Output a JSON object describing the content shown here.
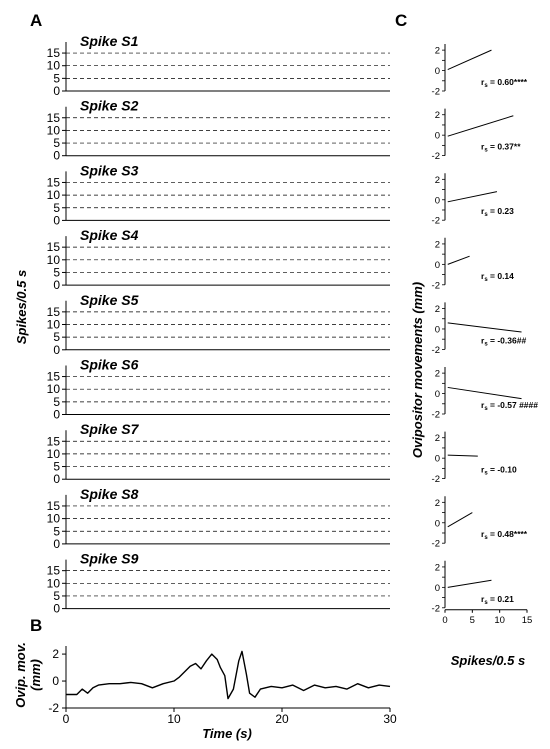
{
  "figure": {
    "panel_a_letter": "A",
    "panel_b_letter": "B",
    "panel_c_letter": "C",
    "panel_a_ylabel": "Spikes/0.5 s",
    "panel_b_ylabel_line1": "Ovip. mov.",
    "panel_b_ylabel_line2": "(mm)",
    "panel_b_xlabel": "Time (s)",
    "panel_c_ylabel": "Ovipositor movements (mm)",
    "panel_c_xlabel": "Spikes/0.5 s"
  },
  "chart_data": [
    {
      "type": "bar",
      "panel": "A",
      "x_unit": "Time (s)",
      "bin_width_s": 0.5,
      "n_bins": 60,
      "ylim": [
        0,
        17
      ],
      "yticks": [
        0,
        5,
        10,
        15
      ],
      "grid": "dashed horizontal",
      "series": [
        {
          "name": "Spike S1",
          "values": [
            0,
            0,
            0,
            0,
            0,
            0,
            0,
            0,
            0,
            0,
            0,
            0,
            0,
            0,
            0,
            0,
            0,
            0,
            0,
            0,
            0,
            0,
            0,
            0,
            0,
            0,
            0,
            0,
            0,
            0,
            0,
            0,
            0,
            0,
            0,
            0,
            0,
            0,
            0,
            0,
            0,
            0,
            0,
            0,
            0,
            0,
            0,
            0,
            0,
            0,
            0,
            0,
            0,
            0,
            0,
            0,
            0,
            0,
            0,
            0
          ]
        },
        {
          "name": "Spike S2",
          "values": [
            0,
            0,
            0,
            0,
            0,
            0,
            0,
            0,
            0,
            0,
            0,
            0,
            0,
            0,
            0,
            0,
            0,
            0,
            0,
            0,
            0,
            0,
            0,
            0,
            0,
            0,
            0,
            0,
            0,
            0,
            0,
            0,
            0,
            0,
            0,
            0,
            0,
            0,
            0,
            0,
            0,
            0,
            0,
            0,
            0,
            0,
            0,
            0,
            0,
            0,
            0,
            0,
            0,
            0,
            0,
            0,
            0,
            0,
            0,
            0
          ]
        },
        {
          "name": "Spike S3",
          "values": [
            0,
            0,
            0,
            0,
            0,
            0,
            0,
            0,
            0,
            0,
            0,
            0,
            0,
            0,
            0,
            0,
            0,
            0,
            0,
            0,
            0,
            0,
            0,
            0,
            0,
            0,
            0,
            0,
            0,
            0,
            0,
            0,
            0,
            0,
            0,
            0,
            0,
            0,
            0,
            0,
            0,
            0,
            0,
            0,
            0,
            0,
            0,
            0,
            0,
            0,
            0,
            0,
            0,
            0,
            0,
            0,
            0,
            0,
            0,
            0
          ]
        },
        {
          "name": "Spike S4",
          "values": [
            0,
            0,
            0,
            0,
            0,
            0,
            0,
            0,
            0,
            0,
            0,
            0,
            0,
            0,
            0,
            0,
            0,
            0,
            0,
            0,
            0,
            0,
            0,
            0,
            0,
            0,
            0,
            0,
            0,
            0,
            0,
            0,
            0,
            0,
            0,
            0,
            0,
            0,
            0,
            0,
            0,
            0,
            0,
            0,
            0,
            0,
            0,
            0,
            0,
            0,
            0,
            0,
            0,
            0,
            0,
            0,
            0,
            0,
            0,
            0
          ]
        },
        {
          "name": "Spike S5",
          "values": [
            0,
            0,
            0,
            0,
            0,
            0,
            0,
            0,
            0,
            0,
            0,
            0,
            0,
            0,
            0,
            0,
            0,
            0,
            0,
            0,
            0,
            0,
            0,
            0,
            0,
            0,
            0,
            0,
            0,
            0,
            0,
            0,
            0,
            0,
            0,
            0,
            0,
            0,
            0,
            0,
            0,
            0,
            0,
            0,
            0,
            0,
            0,
            0,
            0,
            0,
            0,
            0,
            0,
            0,
            0,
            0,
            0,
            0,
            0,
            0
          ]
        },
        {
          "name": "Spike S6",
          "values": [
            0,
            0,
            0,
            0,
            0,
            0,
            0,
            0,
            0,
            0,
            0,
            0,
            0,
            0,
            0,
            0,
            0,
            0,
            0,
            0,
            0,
            0,
            0,
            0,
            0,
            0,
            0,
            0,
            0,
            0,
            0,
            0,
            0,
            0,
            0,
            0,
            0,
            0,
            0,
            0,
            0,
            0,
            0,
            0,
            0,
            0,
            0,
            0,
            0,
            0,
            0,
            0,
            0,
            0,
            0,
            0,
            0,
            0,
            0,
            0
          ]
        },
        {
          "name": "Spike S7",
          "values": [
            0,
            0,
            0,
            0,
            0,
            0,
            0,
            0,
            0,
            0,
            0,
            0,
            0,
            0,
            0,
            0,
            0,
            0,
            0,
            0,
            0,
            0,
            0,
            0,
            0,
            0,
            0,
            0,
            0,
            0,
            0,
            0,
            0,
            0,
            0,
            0,
            0,
            0,
            0,
            0,
            0,
            0,
            0,
            0,
            0,
            0,
            0,
            0,
            0,
            0,
            0,
            0,
            0,
            0,
            0,
            0,
            0,
            0,
            0,
            0
          ]
        },
        {
          "name": "Spike S8",
          "values": [
            0,
            0,
            0,
            0,
            0,
            0,
            0,
            0,
            0,
            0,
            0,
            0,
            0,
            0,
            0,
            0,
            0,
            0,
            0,
            0,
            0,
            0,
            0,
            0,
            0,
            0,
            0,
            0,
            0,
            0,
            0,
            0,
            0,
            0,
            0,
            0,
            0,
            0,
            0,
            0,
            0,
            0,
            0,
            0,
            0,
            0,
            0,
            0,
            0,
            0,
            0,
            0,
            0,
            0,
            0,
            0,
            0,
            0,
            0,
            0
          ]
        },
        {
          "name": "Spike S9",
          "values": [
            0,
            0,
            0,
            0,
            0,
            0,
            0,
            0,
            0,
            0,
            0,
            0,
            0,
            0,
            0,
            0,
            0,
            0,
            0,
            0,
            0,
            0,
            0,
            0,
            0,
            0,
            0,
            0,
            0,
            0,
            0,
            0,
            0,
            0,
            0,
            0,
            0,
            0,
            0,
            0,
            0,
            0,
            0,
            0,
            0,
            0,
            0,
            0,
            0,
            0,
            0,
            0,
            0,
            0,
            0,
            0,
            0,
            0,
            0,
            0
          ]
        }
      ]
    },
    {
      "type": "line",
      "panel": "B",
      "xlabel": "Time (s)",
      "ylabel": "Ovip. mov. (mm)",
      "xlim": [
        0,
        30
      ],
      "ylim": [
        -2,
        2.6
      ],
      "xticks": [
        0,
        10,
        20,
        30
      ],
      "yticks": [
        -2,
        0,
        2
      ],
      "x": [
        0,
        1,
        1.5,
        2,
        2.5,
        3,
        4,
        5,
        6,
        7,
        8,
        9,
        10,
        10.5,
        11,
        11.5,
        12,
        12.5,
        13,
        13.5,
        14,
        14.3,
        14.7,
        15,
        15.5,
        16,
        16.3,
        16.7,
        17,
        17.5,
        18,
        19,
        20,
        21,
        22,
        23,
        24,
        25,
        26,
        27,
        28,
        29,
        30
      ],
      "y": [
        -1,
        -1,
        -0.6,
        -0.9,
        -0.5,
        -0.3,
        -0.2,
        -0.2,
        -0.1,
        -0.2,
        -0.5,
        -0.2,
        0,
        0.3,
        0.7,
        1.1,
        1.3,
        0.9,
        1.5,
        2.0,
        1.6,
        1.0,
        0.4,
        -1.3,
        -0.6,
        1.5,
        2.2,
        0.5,
        -0.9,
        -1.2,
        -0.6,
        -0.4,
        -0.5,
        -0.3,
        -0.7,
        -0.3,
        -0.5,
        -0.4,
        -0.6,
        -0.2,
        -0.5,
        -0.3,
        -0.4
      ]
    },
    {
      "type": "scatter",
      "panel": "C",
      "xlabel": "Spikes/0.5 s",
      "ylabel": "Ovipositor movements (mm)",
      "xlim": [
        0,
        15
      ],
      "ylim": [
        -2,
        2.6
      ],
      "xticks": [
        0,
        5,
        10,
        15
      ],
      "yticks": [
        -2,
        -1,
        0,
        1,
        2
      ],
      "subplots": [
        {
          "name": "Spike S1",
          "rs_label": "r",
          "rs_sub": "s",
          "rs_text": " = 0.60****",
          "points": [],
          "fit": [
            [
              0.5,
              0.1
            ],
            [
              8.5,
              2.0
            ]
          ]
        },
        {
          "name": "Spike S2",
          "rs_label": "r",
          "rs_sub": "s",
          "rs_text": " = 0.37**",
          "points": [],
          "fit": [
            [
              0.5,
              -0.1
            ],
            [
              12.5,
              1.9
            ]
          ]
        },
        {
          "name": "Spike S3",
          "rs_label": "r",
          "rs_sub": "s",
          "rs_text": " = 0.23",
          "points": [],
          "fit": [
            [
              0.5,
              -0.2
            ],
            [
              9.5,
              0.8
            ]
          ]
        },
        {
          "name": "Spike S4",
          "rs_label": "r",
          "rs_sub": "s",
          "rs_text": " = 0.14",
          "points": [],
          "fit": [
            [
              0.5,
              0.0
            ],
            [
              4.5,
              0.8
            ]
          ]
        },
        {
          "name": "Spike S5",
          "rs_label": "r",
          "rs_sub": "s",
          "rs_text": " = -0.36##",
          "points": [],
          "fit": [
            [
              0.5,
              0.6
            ],
            [
              14,
              -0.3
            ]
          ]
        },
        {
          "name": "Spike S6",
          "rs_label": "r",
          "rs_sub": "s",
          "rs_text": " = -0.57 ####",
          "points": [],
          "fit": [
            [
              0.5,
              0.6
            ],
            [
              14,
              -0.5
            ]
          ]
        },
        {
          "name": "Spike S7",
          "rs_label": "r",
          "rs_sub": "s",
          "rs_text": " = -0.10",
          "points": [],
          "fit": [
            [
              0.5,
              0.3
            ],
            [
              6,
              0.2
            ]
          ]
        },
        {
          "name": "Spike S8",
          "rs_label": "r",
          "rs_sub": "s",
          "rs_text": " = 0.48****",
          "points": [],
          "fit": [
            [
              0.5,
              -0.4
            ],
            [
              5,
              1.0
            ]
          ]
        },
        {
          "name": "Spike S9",
          "rs_label": "r",
          "rs_sub": "s",
          "rs_text": " = 0.21",
          "points": [],
          "fit": [
            [
              0.5,
              0.0
            ],
            [
              8.5,
              0.7
            ]
          ]
        }
      ]
    }
  ]
}
